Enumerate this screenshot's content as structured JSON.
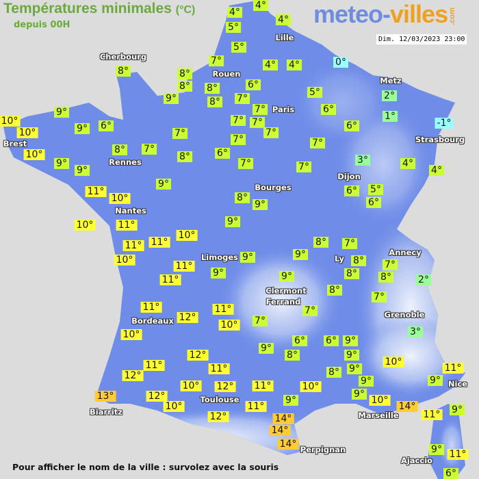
{
  "header": {
    "title": "Températures minimales",
    "unit": "(°C)",
    "subtitle": "depuis 00H"
  },
  "logo": {
    "part1": "meteo-",
    "part2": "villes",
    "suffix": ".com"
  },
  "datetime": "Dim. 12/03/2023 23:00",
  "footer": "Pour afficher le nom de la ville : survolez avec la souris",
  "colors": {
    "sea": "#dcdcdc",
    "land": "#6f8de8",
    "relief": "#c8d4f4",
    "very_cold": "#99ffff",
    "cold": "#99ff99",
    "mild": "#ccff33",
    "warm": "#ffff33",
    "warmer": "#ffcc33"
  },
  "cities": [
    "Cherbourg",
    "Rouen",
    "Lille",
    "Paris",
    "Metz",
    "Strasbourg",
    "Brest",
    "Rennes",
    "Dijon",
    "Bourges",
    "Nantes",
    "Annecy",
    "Ly",
    "Limoges",
    "Clermont",
    "Ferrand",
    "Grenoble",
    "Bordeaux",
    "Toulouse",
    "Nice",
    "Biarritz",
    "Marseille",
    "Perpignan",
    "Ajaccio"
  ],
  "temperatures": [
    "4°",
    "4°",
    "5°",
    "4°",
    "5°",
    "7°",
    "8°",
    "8°",
    "8°",
    "8°",
    "8°",
    "9°",
    "4°",
    "4°",
    "0°",
    "6°",
    "7°",
    "5°",
    "7°",
    "6°",
    "2°",
    "1°",
    "-1°",
    "9°",
    "10°",
    "10°",
    "9°",
    "6°",
    "7°",
    "7°",
    "7°",
    "6°",
    "7°",
    "7°",
    "7°",
    "10°",
    "8°",
    "7°",
    "8°",
    "6°",
    "9°",
    "9°",
    "7°",
    "7°",
    "3°",
    "4°",
    "4°",
    "11°",
    "10°",
    "9°",
    "6°",
    "5°",
    "6°",
    "8°",
    "9°",
    "10°",
    "11°",
    "9°",
    "11°",
    "11°",
    "10°",
    "10°",
    "11°",
    "9°",
    "9°",
    "8°",
    "7°",
    "9°",
    "8°",
    "7°",
    "8°",
    "8°",
    "2°",
    "11°",
    "9°",
    "8°",
    "7°",
    "7°",
    "11°",
    "12°",
    "11°",
    "10°",
    "7°",
    "3°",
    "10°",
    "9°",
    "6°",
    "6°",
    "9°",
    "8°",
    "9°",
    "12°",
    "10°",
    "11°",
    "11°",
    "12°",
    "8°",
    "9°",
    "11°",
    "9°",
    "9°",
    "10°",
    "12°",
    "11°",
    "10°",
    "9°",
    "10°",
    "13°",
    "12°",
    "10°",
    "9°",
    "14°",
    "11°",
    "9°",
    "11°",
    "12°",
    "14°",
    "14°",
    "14°",
    "9°",
    "11°",
    "6°"
  ]
}
